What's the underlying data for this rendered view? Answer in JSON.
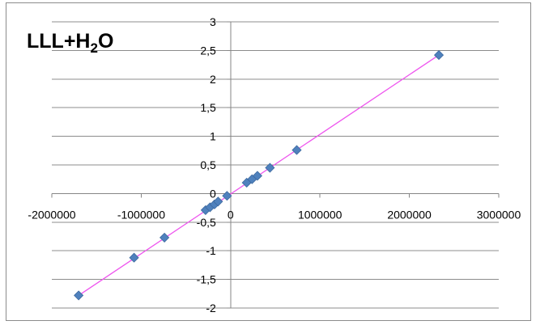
{
  "chart_data": {
    "type": "scatter",
    "title": "LLL+H",
    "title_subscript": "2",
    "title_suffix": "O",
    "xlabel": "",
    "ylabel": "",
    "xlim": [
      -2000000,
      3000000
    ],
    "ylim": [
      -2,
      3
    ],
    "x_ticks": [
      -2000000,
      -1000000,
      0,
      1000000,
      2000000,
      3000000
    ],
    "x_tick_labels": [
      "-2000000",
      "-1000000",
      "0",
      "1000000",
      "2000000",
      "3000000"
    ],
    "y_ticks": [
      -2,
      -1.5,
      -1,
      -0.5,
      0,
      0.5,
      1,
      1.5,
      2,
      2.5,
      3
    ],
    "y_tick_labels": [
      "-2",
      "-1,5",
      "-1",
      "-0,5",
      "0",
      "0,5",
      "1",
      "1,5",
      "2",
      "2,5",
      "3"
    ],
    "grid": "horizontal",
    "legend": "none",
    "marker": "diamond",
    "marker_color": "#4f81bd",
    "trendline_color": "#ee55ee",
    "gridline_color": "#8c8c8c",
    "series": [
      {
        "marker": "diamond",
        "points": [
          {
            "x": -1700000,
            "y": -1.78
          },
          {
            "x": -1080000,
            "y": -1.12
          },
          {
            "x": -740000,
            "y": -0.77
          },
          {
            "x": -280000,
            "y": -0.29
          },
          {
            "x": -230000,
            "y": -0.24
          },
          {
            "x": -180000,
            "y": -0.19
          },
          {
            "x": -140000,
            "y": -0.14
          },
          {
            "x": -40000,
            "y": -0.04
          },
          {
            "x": 180000,
            "y": 0.19
          },
          {
            "x": 240000,
            "y": 0.25
          },
          {
            "x": 300000,
            "y": 0.31
          },
          {
            "x": 440000,
            "y": 0.45
          },
          {
            "x": 740000,
            "y": 0.76
          },
          {
            "x": 2330000,
            "y": 2.42
          }
        ]
      }
    ],
    "trendline": {
      "from": {
        "x": -1700000,
        "y": -1.78
      },
      "to": {
        "x": 2330000,
        "y": 2.42
      }
    }
  }
}
